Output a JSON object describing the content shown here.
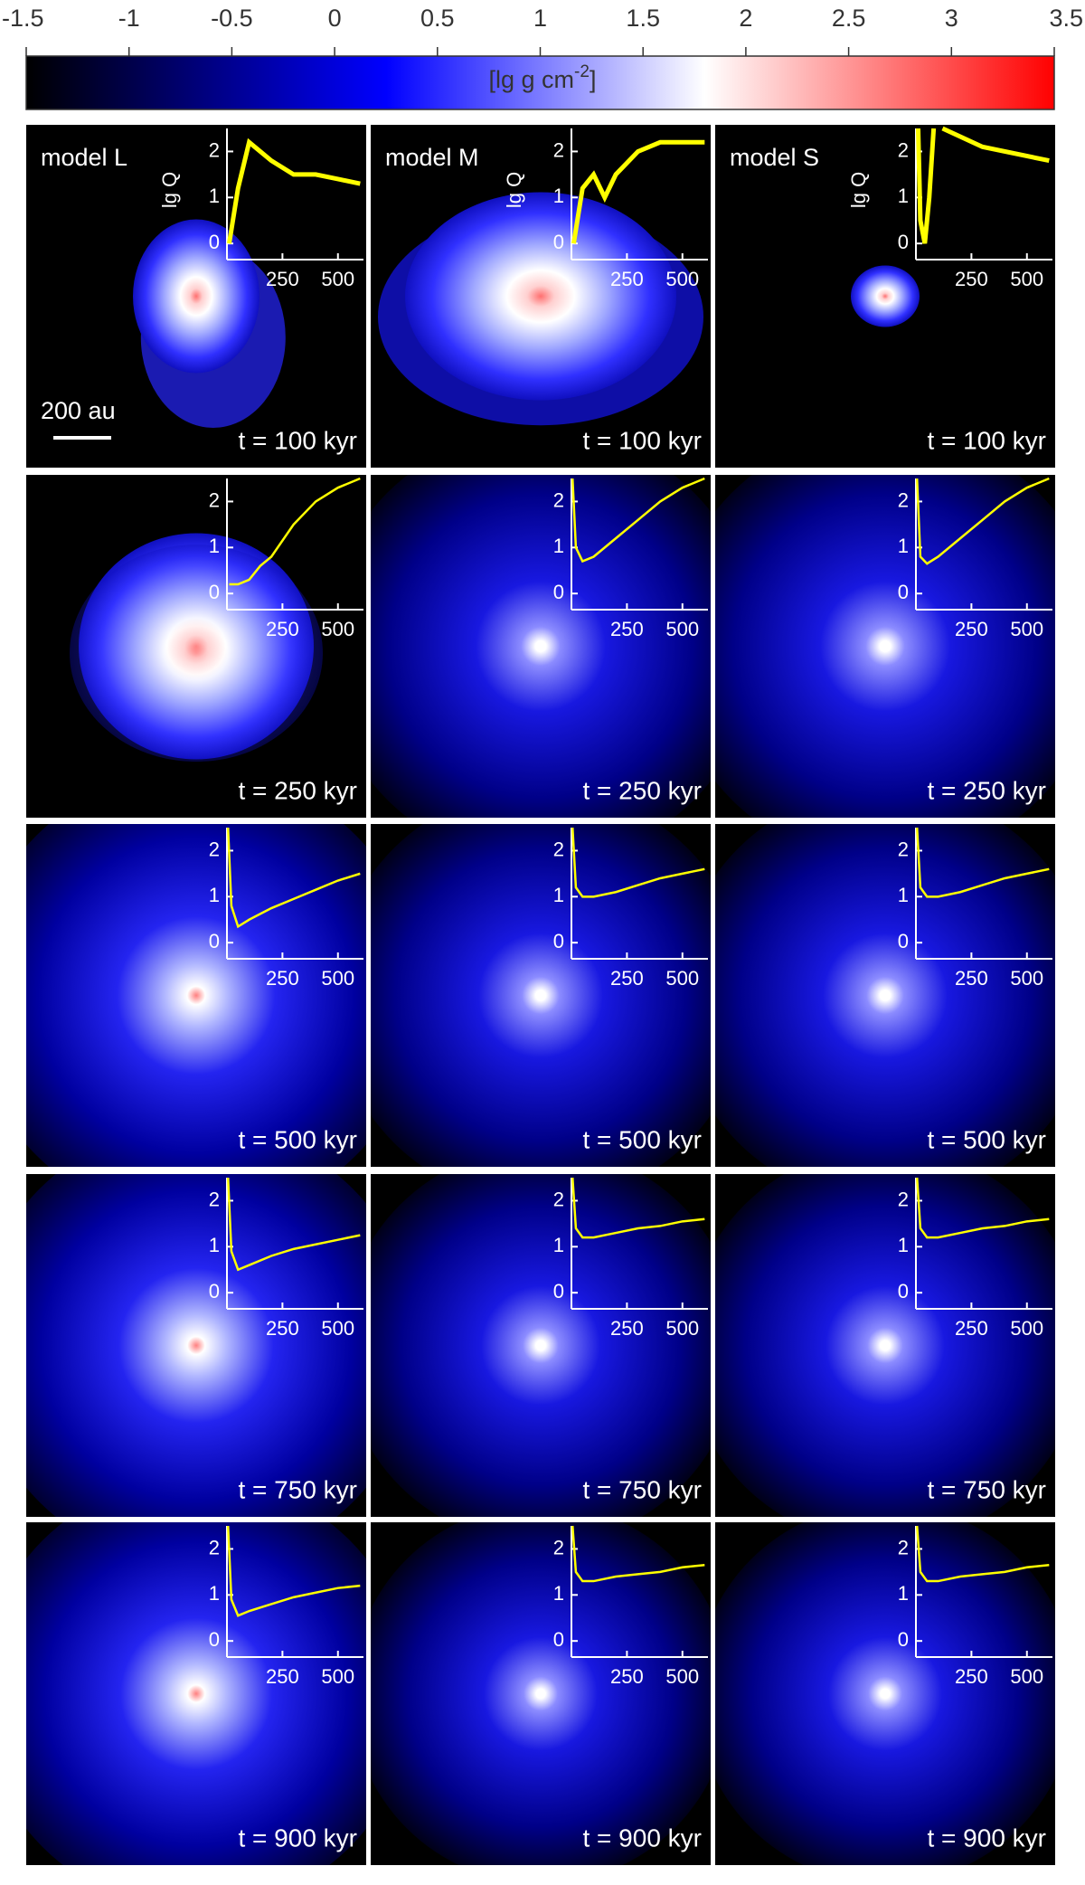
{
  "colorbar": {
    "lim": [
      -1.5,
      3.5
    ],
    "ticks": [
      -1.5,
      -1,
      -0.5,
      0,
      0.5,
      1,
      1.5,
      2,
      2.5,
      3,
      3.5
    ],
    "colors": [
      "#000000",
      "#0000ff",
      "#ffffff",
      "#ff0000"
    ],
    "stops": [
      -1.5,
      0.25,
      1.8,
      3.5
    ],
    "label": "[lg g cm",
    "label_exponent": "-2",
    "label_end": "]"
  },
  "scale_bar": "200 au",
  "chart_data": {
    "type": "line",
    "color": "#ffff00",
    "xlim": [
      0,
      615
    ],
    "ylim": [
      -0.35,
      2.5
    ],
    "xticks": [
      250,
      500
    ],
    "yticks": [
      0,
      1,
      2
    ],
    "ylabel": "lg Q",
    "panels": [
      {
        "model": "model L",
        "time": "t = 100 kyr",
        "x": [
          10,
          50,
          100,
          150,
          200,
          300,
          400,
          500,
          600
        ],
        "values": [
          0,
          1.2,
          2.2,
          2.0,
          1.8,
          1.5,
          1.5,
          1.4,
          1.3
        ]
      },
      {
        "model": "model M",
        "time": "t = 100 kyr",
        "x": [
          10,
          50,
          100,
          150,
          200,
          300,
          400,
          500,
          600
        ],
        "values": [
          0,
          1.2,
          1.5,
          1.0,
          1.5,
          2.0,
          2.2,
          2.2,
          2.2
        ]
      },
      {
        "model": "model S",
        "time": "t = 100 kyr",
        "x": [
          10,
          20,
          40,
          60,
          80,
          90,
          120,
          300,
          600
        ],
        "values": [
          2.5,
          0.5,
          0,
          1,
          2.5,
          null,
          2.5,
          2.1,
          1.8
        ]
      },
      {
        "time": "t = 250 kyr",
        "x": [
          10,
          50,
          100,
          150,
          200,
          300,
          400,
          500,
          600
        ],
        "values": [
          0.2,
          0.2,
          0.3,
          0.6,
          0.8,
          1.5,
          2.0,
          2.3,
          2.5
        ]
      },
      {
        "time": "t = 250 kyr",
        "x": [
          5,
          20,
          50,
          100,
          200,
          300,
          400,
          500,
          600
        ],
        "values": [
          2.5,
          1.0,
          0.7,
          0.8,
          1.2,
          1.6,
          2.0,
          2.3,
          2.5
        ]
      },
      {
        "time": "t = 250 kyr",
        "x": [
          5,
          20,
          50,
          100,
          200,
          300,
          400,
          500,
          600
        ],
        "values": [
          2.5,
          0.8,
          0.65,
          0.8,
          1.2,
          1.6,
          2.0,
          2.3,
          2.5
        ]
      },
      {
        "time": "t = 500 kyr",
        "x": [
          5,
          20,
          50,
          100,
          200,
          300,
          400,
          500,
          600
        ],
        "values": [
          2.5,
          0.8,
          0.35,
          0.5,
          0.75,
          0.95,
          1.15,
          1.35,
          1.5
        ]
      },
      {
        "time": "t = 500 kyr",
        "x": [
          5,
          20,
          50,
          100,
          200,
          300,
          400,
          500,
          600
        ],
        "values": [
          2.5,
          1.2,
          1.0,
          1.0,
          1.1,
          1.25,
          1.4,
          1.5,
          1.6
        ]
      },
      {
        "time": "t = 500 kyr",
        "x": [
          5,
          20,
          50,
          100,
          200,
          300,
          400,
          500,
          600
        ],
        "values": [
          2.5,
          1.2,
          1.0,
          1.0,
          1.1,
          1.25,
          1.4,
          1.5,
          1.6
        ]
      },
      {
        "time": "t = 750 kyr",
        "x": [
          5,
          20,
          50,
          100,
          200,
          300,
          400,
          500,
          600
        ],
        "values": [
          2.5,
          0.9,
          0.5,
          0.6,
          0.8,
          0.95,
          1.05,
          1.15,
          1.25
        ]
      },
      {
        "time": "t = 750 kyr",
        "x": [
          5,
          20,
          50,
          100,
          200,
          300,
          400,
          500,
          600
        ],
        "values": [
          2.5,
          1.4,
          1.2,
          1.2,
          1.3,
          1.4,
          1.45,
          1.55,
          1.6
        ]
      },
      {
        "time": "t = 750 kyr",
        "x": [
          5,
          20,
          50,
          100,
          200,
          300,
          400,
          500,
          600
        ],
        "values": [
          2.5,
          1.4,
          1.2,
          1.2,
          1.3,
          1.4,
          1.45,
          1.55,
          1.6
        ]
      },
      {
        "time": "t = 900 kyr",
        "x": [
          5,
          20,
          50,
          100,
          200,
          300,
          400,
          500,
          600
        ],
        "values": [
          2.5,
          0.9,
          0.55,
          0.65,
          0.8,
          0.95,
          1.05,
          1.15,
          1.2
        ]
      },
      {
        "time": "t = 900 kyr",
        "x": [
          5,
          20,
          50,
          100,
          200,
          300,
          400,
          500,
          600
        ],
        "values": [
          2.5,
          1.5,
          1.3,
          1.3,
          1.4,
          1.45,
          1.5,
          1.6,
          1.65
        ]
      },
      {
        "time": "t = 900 kyr",
        "x": [
          5,
          20,
          50,
          100,
          200,
          300,
          400,
          500,
          600
        ],
        "values": [
          2.5,
          1.5,
          1.3,
          1.3,
          1.4,
          1.45,
          1.5,
          1.6,
          1.65
        ]
      }
    ]
  }
}
